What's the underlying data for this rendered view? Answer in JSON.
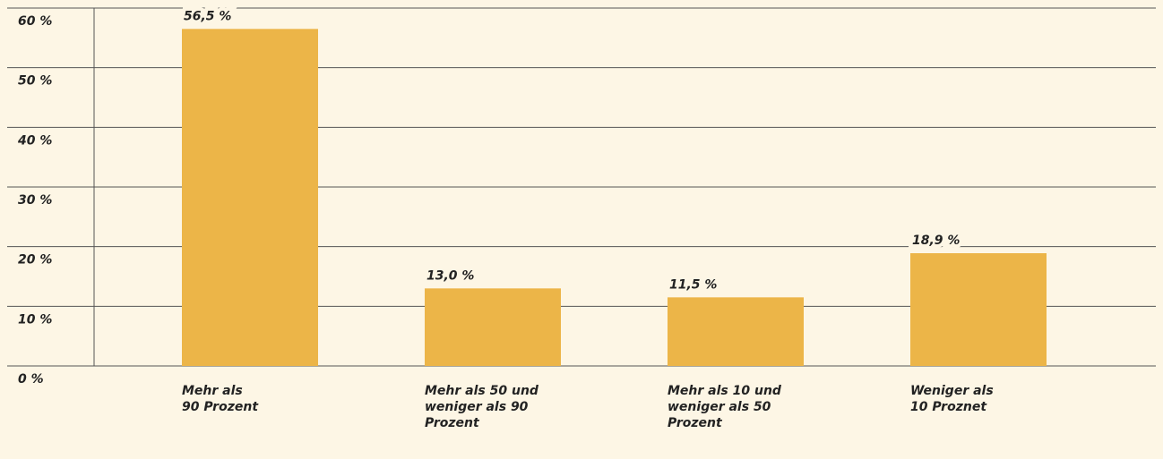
{
  "chart_data": {
    "type": "bar",
    "categories": [
      "Mehr als\n90 Prozent",
      "Mehr als 50 und\nweniger als 90\nProzent",
      "Mehr als 10 und\nweniger als 50\nProzent",
      "Weniger als\n10 Proznet"
    ],
    "values": [
      56.5,
      13.0,
      11.5,
      18.9
    ],
    "value_labels": [
      "56,5 %",
      "13,0 %",
      "11,5 %",
      "18,9 %"
    ],
    "color": "#ecb548",
    "ylim": [
      0,
      60
    ],
    "yticks": [
      {
        "value": 0,
        "label": "0 %"
      },
      {
        "value": 10,
        "label": "10 %"
      },
      {
        "value": 20,
        "label": "20 %"
      },
      {
        "value": 30,
        "label": "30 %"
      },
      {
        "value": 40,
        "label": "40 %"
      },
      {
        "value": 50,
        "label": "50 %"
      },
      {
        "value": 60,
        "label": "60 %"
      }
    ],
    "grid": true
  }
}
